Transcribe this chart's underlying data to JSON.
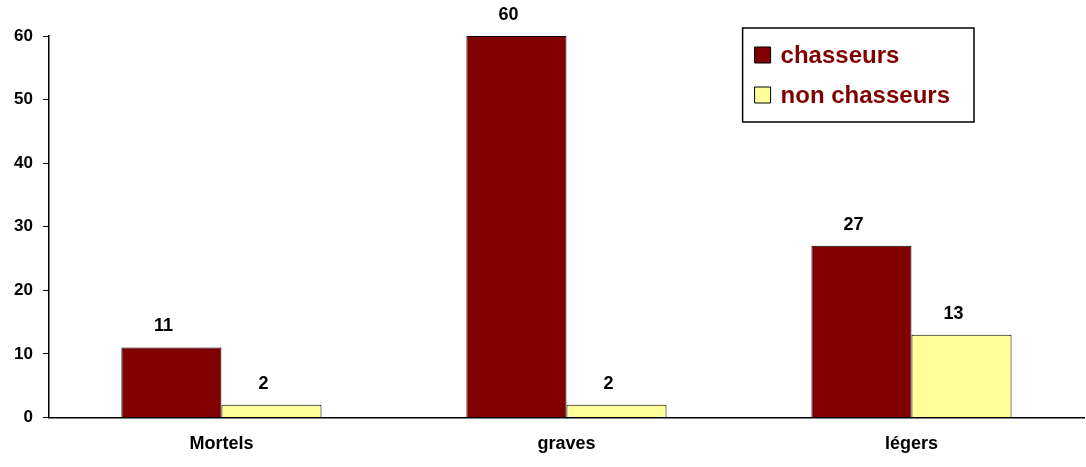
{
  "chart_data": {
    "type": "bar",
    "categories": [
      "Mortels",
      "graves",
      "légers"
    ],
    "series": [
      {
        "name": "chasseurs",
        "color": "#800000",
        "values": [
          11,
          60,
          27
        ]
      },
      {
        "name": "non chasseurs",
        "color": "#ffff99",
        "values": [
          2,
          2,
          13
        ]
      }
    ],
    "ylim": [
      0,
      60
    ],
    "yticks": [
      0,
      10,
      20,
      30,
      40,
      50,
      60
    ],
    "grid": false,
    "legend": "top right",
    "data_labels": true
  }
}
